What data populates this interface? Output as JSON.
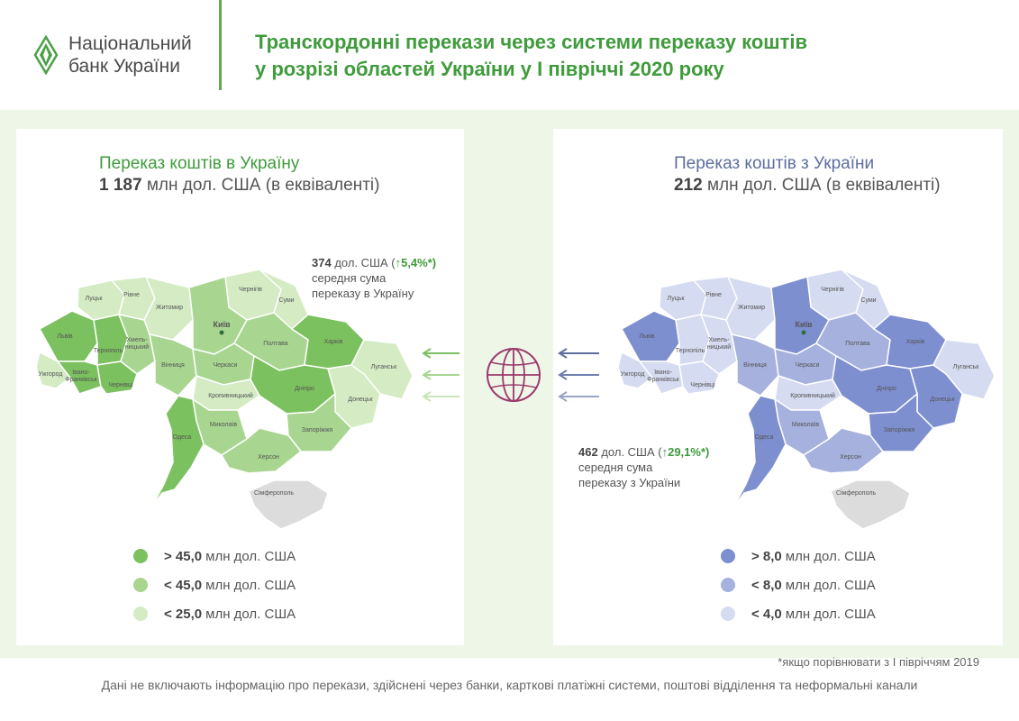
{
  "header": {
    "logo_line1": "Національний",
    "logo_line2": "банк України",
    "title_line1": "Транскордонні перекази через системи переказу коштів",
    "title_line2": "у розрізі областей України у І півріччі 2020 року"
  },
  "colors": {
    "green_dark": "#7cc15f",
    "green_mid": "#a8d690",
    "green_light": "#d4ebc4",
    "blue_dark": "#7d8fcf",
    "blue_mid": "#a6b1de",
    "blue_light": "#d5dbf0",
    "crimea": "#dcdcdc",
    "globe": "#9b3a6b"
  },
  "left": {
    "title": "Переказ коштів в Україну",
    "amount": "1 187",
    "amount_unit": "млн дол. США (в еквіваленті)",
    "avg_value": "374",
    "avg_unit": "дол. США (",
    "avg_change": "↑5,4%*)",
    "avg_line2": "середня сума",
    "avg_line3": "переказу в Україну",
    "legend": [
      {
        "op": "> 45,0",
        "text": "млн дол. США"
      },
      {
        "op": "< 45,0",
        "text": "млн дол. США"
      },
      {
        "op": "< 25,0",
        "text": "млн дол. США"
      }
    ]
  },
  "right": {
    "title": "Переказ коштів з України",
    "amount": "212",
    "amount_unit": "млн дол. США (в еквіваленті)",
    "avg_value": "462",
    "avg_unit": "дол. США (",
    "avg_change": "↑29,1%*)",
    "avg_line2": "середня сума",
    "avg_line3": "переказу з України",
    "legend": [
      {
        "op": "> 8,0",
        "text": "млн дол. США"
      },
      {
        "op": "< 8,0",
        "text": "млн дол. США"
      },
      {
        "op": "< 4,0",
        "text": "млн дол. США"
      }
    ]
  },
  "regions": {
    "lutsk": "Луцьк",
    "rivne": "Рівне",
    "zhytomyr": "Житомир",
    "chernihiv": "Чернігів",
    "sumy": "Суми",
    "kyiv": "Київ",
    "lviv": "Львів",
    "ternopil": "Тернопіль",
    "khmelnytskyi": "Хмель-\nницький",
    "vinnytsia": "Вінниця",
    "cherkasy": "Черкаси",
    "poltava": "Полтава",
    "kharkiv": "Харків",
    "luhansk": "Луганськ",
    "uzhhorod": "Ужгород",
    "ivano": "Івано-\nФранківськ",
    "chernivtsi": "Чернівці",
    "kropyvnytskyi": "Кропивницький",
    "dnipro": "Дніпро",
    "donetsk": "Донецьк",
    "mykolaiv": "Миколаїв",
    "zaporizhzhia": "Запоріжжя",
    "odesa": "Одеса",
    "kherson": "Херсон",
    "simferopol": "Сімферополь"
  },
  "region_level_in": {
    "lutsk": "light",
    "rivne": "light",
    "zhytomyr": "light",
    "chernihiv": "light",
    "sumy": "light",
    "kyiv": "mid",
    "lviv": "dark",
    "ternopil": "dark",
    "khmelnytskyi": "mid",
    "vinnytsia": "mid",
    "cherkasy": "mid",
    "poltava": "mid",
    "kharkiv": "dark",
    "luhansk": "light",
    "uzhhorod": "light",
    "ivano": "dark",
    "chernivtsi": "dark",
    "kropyvnytskyi": "light",
    "dnipro": "dark",
    "donetsk": "light",
    "mykolaiv": "mid",
    "zaporizhzhia": "mid",
    "odesa": "dark",
    "kherson": "mid"
  },
  "region_level_out": {
    "lutsk": "light",
    "rivne": "light",
    "zhytomyr": "light",
    "chernihiv": "light",
    "sumy": "light",
    "kyiv": "dark",
    "lviv": "dark",
    "ternopil": "light",
    "khmelnytskyi": "light",
    "vinnytsia": "mid",
    "cherkasy": "mid",
    "poltava": "mid",
    "kharkiv": "dark",
    "luhansk": "light",
    "uzhhorod": "light",
    "ivano": "light",
    "chernivtsi": "light",
    "kropyvnytskyi": "light",
    "dnipro": "dark",
    "donetsk": "dark",
    "mykolaiv": "mid",
    "zaporizhzhia": "dark",
    "odesa": "dark",
    "kherson": "mid"
  },
  "footnote": "*якщо порівнювати з І півріччям 2019",
  "disclaimer": "Дані не включають інформацію про перекази, здійснені через банки, карткові  платіжні системи, поштові відділення та неформальні канали"
}
